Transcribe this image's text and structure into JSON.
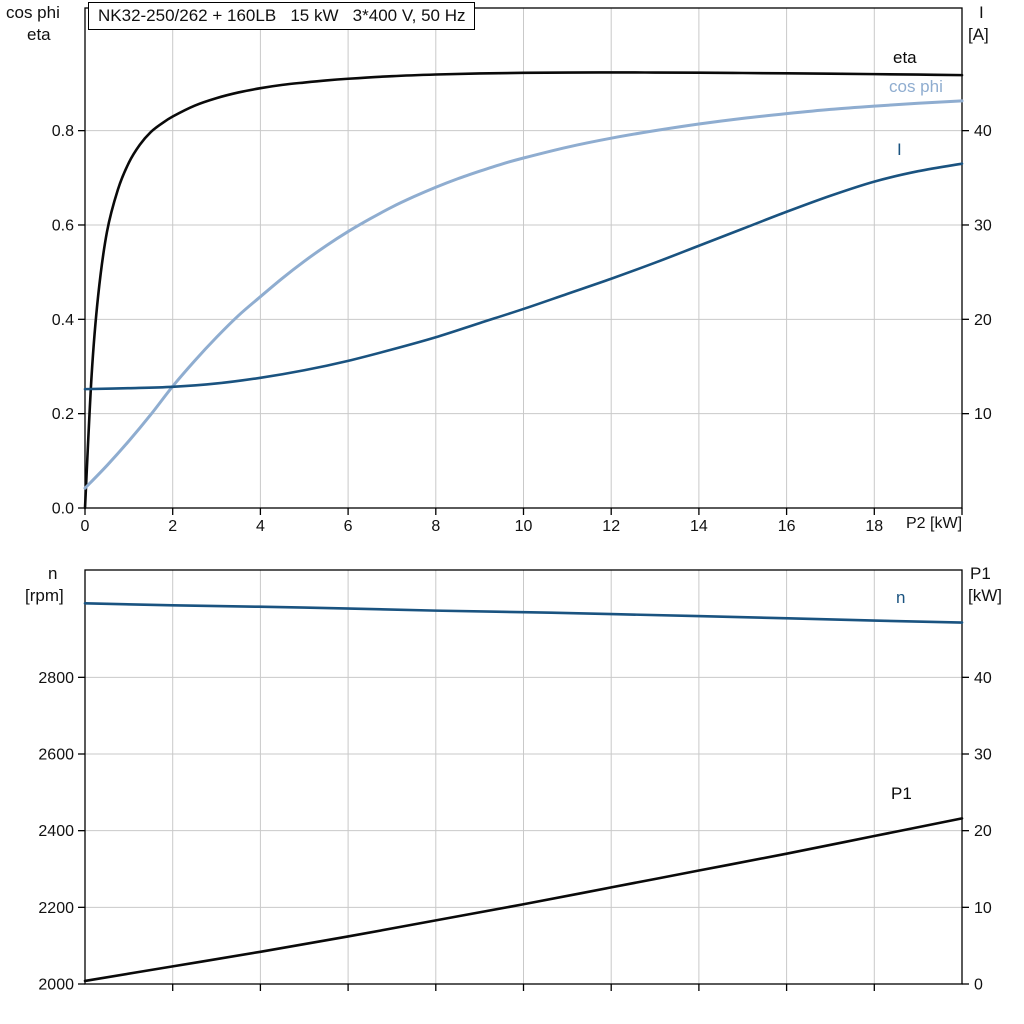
{
  "title_box": "NK32-250/262 + 160LB   15 kW   3*400 V, 50 Hz",
  "colors": {
    "black": "#0a0a0a",
    "light_blue": "#8fadd0",
    "dark_blue": "#1a5380",
    "grid": "#c9c9c9",
    "axis": "#000000"
  },
  "chart_data": [
    {
      "type": "line",
      "title": "NK32-250/262 + 160LB   15 kW   3*400 V, 50 Hz",
      "xlabel": "P2 [kW]",
      "ylabel_left_line1": "cos phi",
      "ylabel_left_line2": "eta",
      "ylabel_right_line1": "I",
      "ylabel_right_line2": "[A]",
      "grid": true,
      "legend": "inline-labels",
      "xlim": [
        0,
        20
      ],
      "ylim_left": [
        0,
        1.06
      ],
      "ylim_right": [
        0,
        53
      ],
      "x_ticks": [
        0,
        2,
        4,
        6,
        8,
        10,
        12,
        14,
        16,
        18,
        20
      ],
      "x_tick_labels": [
        "0",
        "2",
        "4",
        "6",
        "8",
        "10",
        "12",
        "14",
        "16",
        "18",
        ""
      ],
      "y_ticks_left": [
        0,
        0.2,
        0.4,
        0.6,
        0.8
      ],
      "y_tick_labels_left": [
        "0.0",
        "0.2",
        "0.4",
        "0.6",
        "0.8"
      ],
      "y_ticks_right": [
        10,
        20,
        30,
        40
      ],
      "y_tick_labels_right": [
        "10",
        "20",
        "30",
        "40"
      ],
      "series": [
        {
          "name": "eta",
          "axis": "left",
          "color_key": "black",
          "width": 2.6,
          "points": [
            [
              0,
              0
            ],
            [
              0.15,
              0.28
            ],
            [
              0.3,
              0.45
            ],
            [
              0.5,
              0.585
            ],
            [
              0.75,
              0.675
            ],
            [
              1,
              0.732
            ],
            [
              1.25,
              0.77
            ],
            [
              1.5,
              0.797
            ],
            [
              1.75,
              0.815
            ],
            [
              2,
              0.83
            ],
            [
              2.5,
              0.853
            ],
            [
              3,
              0.869
            ],
            [
              3.5,
              0.881
            ],
            [
              4,
              0.89
            ],
            [
              4.5,
              0.897
            ],
            [
              5,
              0.902
            ],
            [
              5.5,
              0.9065
            ],
            [
              6,
              0.91
            ],
            [
              7,
              0.9155
            ],
            [
              8,
              0.919
            ],
            [
              9,
              0.9212
            ],
            [
              10,
              0.9225
            ],
            [
              11,
              0.9232
            ],
            [
              12,
              0.9234
            ],
            [
              13,
              0.9232
            ],
            [
              14,
              0.9228
            ],
            [
              15,
              0.9222
            ],
            [
              16,
              0.9215
            ],
            [
              17,
              0.9207
            ],
            [
              18,
              0.9198
            ],
            [
              19,
              0.9188
            ],
            [
              20,
              0.9177
            ]
          ]
        },
        {
          "name": "cos phi",
          "axis": "left",
          "color_key": "light_blue",
          "width": 3,
          "points": [
            [
              0,
              0.042
            ],
            [
              0.5,
              0.09
            ],
            [
              1,
              0.142
            ],
            [
              1.5,
              0.198
            ],
            [
              2,
              0.258
            ],
            [
              2.5,
              0.312
            ],
            [
              3,
              0.362
            ],
            [
              3.5,
              0.408
            ],
            [
              4,
              0.448
            ],
            [
              4.5,
              0.487
            ],
            [
              5,
              0.523
            ],
            [
              5.5,
              0.556
            ],
            [
              6,
              0.586
            ],
            [
              6.5,
              0.613
            ],
            [
              7,
              0.638
            ],
            [
              7.5,
              0.66
            ],
            [
              8,
              0.68
            ],
            [
              8.5,
              0.698
            ],
            [
              9,
              0.714
            ],
            [
              9.5,
              0.729
            ],
            [
              10,
              0.742
            ],
            [
              11,
              0.765
            ],
            [
              12,
              0.784
            ],
            [
              13,
              0.8
            ],
            [
              14,
              0.814
            ],
            [
              15,
              0.826
            ],
            [
              16,
              0.836
            ],
            [
              17,
              0.845
            ],
            [
              18,
              0.852
            ],
            [
              19,
              0.858
            ],
            [
              20,
              0.863
            ]
          ]
        },
        {
          "name": "I",
          "axis": "right",
          "color_key": "dark_blue",
          "width": 2.6,
          "points": [
            [
              0,
              12.6
            ],
            [
              1,
              12.7
            ],
            [
              2,
              12.85
            ],
            [
              3,
              13.2
            ],
            [
              4,
              13.8
            ],
            [
              5,
              14.6
            ],
            [
              6,
              15.6
            ],
            [
              7,
              16.8
            ],
            [
              8,
              18.1
            ],
            [
              9,
              19.6
            ],
            [
              10,
              21.1
            ],
            [
              11,
              22.7
            ],
            [
              12,
              24.3
            ],
            [
              13,
              26.0
            ],
            [
              14,
              27.8
            ],
            [
              15,
              29.6
            ],
            [
              16,
              31.4
            ],
            [
              17,
              33.1
            ],
            [
              18,
              34.6
            ],
            [
              19,
              35.7
            ],
            [
              20,
              36.5
            ]
          ]
        }
      ]
    },
    {
      "type": "line",
      "title": "",
      "xlabel": "",
      "ylabel_left_line1": "n",
      "ylabel_left_line2": "[rpm]",
      "ylabel_right_line1": "P1",
      "ylabel_right_line2": "[kW]",
      "grid": true,
      "legend": "inline-labels",
      "xlim": [
        0,
        20
      ],
      "ylim_left": [
        2000,
        3080
      ],
      "ylim_right": [
        0,
        54
      ],
      "x_ticks": [
        2,
        4,
        6,
        8,
        10,
        12,
        14,
        16,
        18
      ],
      "x_tick_labels": [
        "",
        "",
        "",
        "",
        "",
        "",
        "",
        "",
        ""
      ],
      "y_ticks_left": [
        2000,
        2200,
        2400,
        2600,
        2800
      ],
      "y_tick_labels_left": [
        "2000",
        "2200",
        "2400",
        "2600",
        "2800"
      ],
      "y_ticks_right": [
        0,
        10,
        20,
        30,
        40
      ],
      "y_tick_labels_right": [
        "0",
        "10",
        "20",
        "30",
        "40"
      ],
      "series": [
        {
          "name": "n",
          "axis": "left",
          "color_key": "dark_blue",
          "width": 2.6,
          "points": [
            [
              0,
              2993
            ],
            [
              2,
              2988
            ],
            [
              5,
              2982
            ],
            [
              8,
              2974
            ],
            [
              10,
              2970
            ],
            [
              12,
              2965
            ],
            [
              15,
              2957
            ],
            [
              18,
              2948
            ],
            [
              20,
              2943
            ]
          ]
        },
        {
          "name": "P1",
          "axis": "right",
          "color_key": "black",
          "width": 2.6,
          "points": [
            [
              0,
              0.4
            ],
            [
              2,
              2.3
            ],
            [
              4,
              4.2
            ],
            [
              6,
              6.2
            ],
            [
              8,
              8.3
            ],
            [
              10,
              10.4
            ],
            [
              12,
              12.6
            ],
            [
              14,
              14.8
            ],
            [
              16,
              17.0
            ],
            [
              18,
              19.3
            ],
            [
              20,
              21.6
            ]
          ]
        }
      ]
    }
  ]
}
